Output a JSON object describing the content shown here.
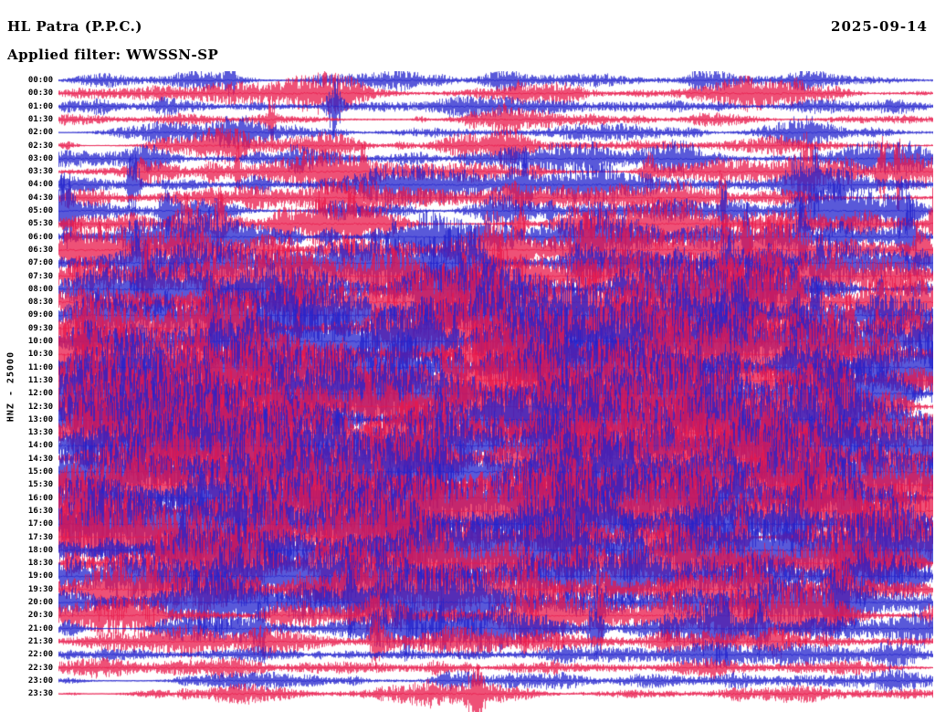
{
  "header": {
    "station": "HL Patra (P.P.C.)",
    "date": "2025-09-14",
    "filter_label": "Applied filter: WWSSN-SP"
  },
  "axis": {
    "channel_label": "HNZ - 25000"
  },
  "chart_data": {
    "type": "line",
    "subtype": "helicorder-seismogram",
    "title": "HL Patra (P.P.C.)",
    "date": "2025-09-14",
    "filter": "WWSSN-SP",
    "channel": "HNZ",
    "gain": 25000,
    "row_interval_minutes": 30,
    "legend_position": "none",
    "grid": false,
    "colors": {
      "even_rows": "#2222cc",
      "odd_rows": "#e8174a"
    },
    "seed": 20250914,
    "rows": [
      {
        "label": "00:00",
        "activity": 0.8
      },
      {
        "label": "00:30",
        "activity": 0.9
      },
      {
        "label": "01:00",
        "activity": 0.8
      },
      {
        "label": "01:30",
        "activity": 0.7
      },
      {
        "label": "02:00",
        "activity": 0.8
      },
      {
        "label": "02:30",
        "activity": 0.9
      },
      {
        "label": "03:00",
        "activity": 1.0
      },
      {
        "label": "03:30",
        "activity": 1.1
      },
      {
        "label": "04:00",
        "activity": 1.1
      },
      {
        "label": "04:30",
        "activity": 1.0
      },
      {
        "label": "05:00",
        "activity": 1.2
      },
      {
        "label": "05:30",
        "activity": 1.2
      },
      {
        "label": "06:00",
        "activity": 1.4
      },
      {
        "label": "06:30",
        "activity": 1.5
      },
      {
        "label": "07:00",
        "activity": 1.6
      },
      {
        "label": "07:30",
        "activity": 1.6
      },
      {
        "label": "08:00",
        "activity": 1.7
      },
      {
        "label": "08:30",
        "activity": 1.8
      },
      {
        "label": "09:00",
        "activity": 1.9
      },
      {
        "label": "09:30",
        "activity": 1.9
      },
      {
        "label": "10:00",
        "activity": 2.0
      },
      {
        "label": "10:30",
        "activity": 2.0
      },
      {
        "label": "11:00",
        "activity": 2.1
      },
      {
        "label": "11:30",
        "activity": 2.0
      },
      {
        "label": "12:00",
        "activity": 2.0
      },
      {
        "label": "12:30",
        "activity": 2.1
      },
      {
        "label": "13:00",
        "activity": 2.0
      },
      {
        "label": "13:30",
        "activity": 2.0
      },
      {
        "label": "14:00",
        "activity": 2.1
      },
      {
        "label": "14:30",
        "activity": 2.0
      },
      {
        "label": "15:00",
        "activity": 2.1
      },
      {
        "label": "15:30",
        "activity": 2.0
      },
      {
        "label": "16:00",
        "activity": 2.0
      },
      {
        "label": "16:30",
        "activity": 2.1
      },
      {
        "label": "17:00",
        "activity": 2.0
      },
      {
        "label": "17:30",
        "activity": 2.0
      },
      {
        "label": "18:00",
        "activity": 1.9
      },
      {
        "label": "18:30",
        "activity": 1.8
      },
      {
        "label": "19:00",
        "activity": 1.7
      },
      {
        "label": "19:30",
        "activity": 1.6
      },
      {
        "label": "20:00",
        "activity": 1.5
      },
      {
        "label": "20:30",
        "activity": 1.4
      },
      {
        "label": "21:00",
        "activity": 1.2
      },
      {
        "label": "21:30",
        "activity": 1.0
      },
      {
        "label": "22:00",
        "activity": 0.9
      },
      {
        "label": "22:30",
        "activity": 0.8
      },
      {
        "label": "23:00",
        "activity": 0.8
      },
      {
        "label": "23:30",
        "activity": 0.7
      }
    ]
  }
}
